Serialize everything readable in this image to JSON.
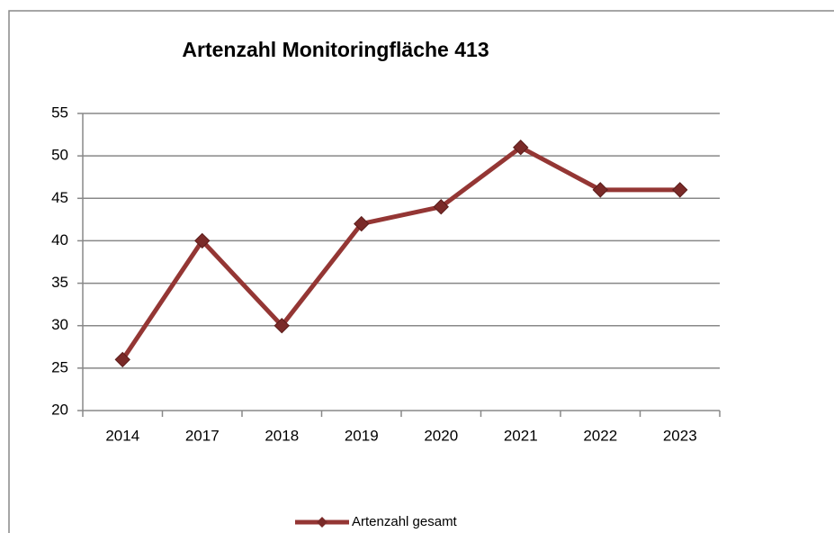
{
  "chart_data": {
    "type": "line",
    "title": "Artenzahl Monitoringfläche 413",
    "categories": [
      "2014",
      "2017",
      "2018",
      "2019",
      "2020",
      "2021",
      "2022",
      "2023"
    ],
    "series": [
      {
        "name": "Artenzahl gesamt",
        "color": "#943634",
        "values": [
          26,
          40,
          30,
          42,
          44,
          51,
          46,
          46
        ]
      }
    ],
    "ylim": [
      20,
      55
    ],
    "yticks": [
      20,
      25,
      30,
      35,
      40,
      45,
      50,
      55
    ],
    "grid": true,
    "legend": "bottom"
  }
}
